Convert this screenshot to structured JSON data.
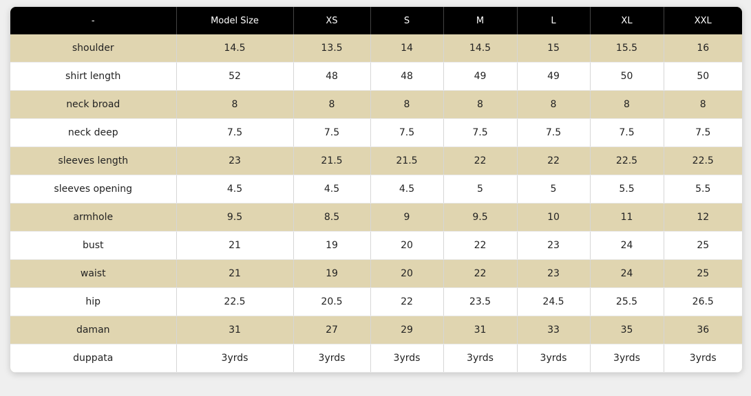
{
  "table": {
    "header": [
      "-",
      "Model Size",
      "XS",
      "S",
      "M",
      "L",
      "XL",
      "XXL"
    ],
    "rows": [
      [
        "shoulder",
        "14.5",
        "13.5",
        "14",
        "14.5",
        "15",
        "15.5",
        "16"
      ],
      [
        "shirt length",
        "52",
        "48",
        "48",
        "49",
        "49",
        "50",
        "50"
      ],
      [
        "neck broad",
        "8",
        "8",
        "8",
        "8",
        "8",
        "8",
        "8"
      ],
      [
        "neck deep",
        "7.5",
        "7.5",
        "7.5",
        "7.5",
        "7.5",
        "7.5",
        "7.5"
      ],
      [
        "sleeves length",
        "23",
        "21.5",
        "21.5",
        "22",
        "22",
        "22.5",
        "22.5"
      ],
      [
        "sleeves opening",
        "4.5",
        "4.5",
        "4.5",
        "5",
        "5",
        "5.5",
        "5.5"
      ],
      [
        "armhole",
        "9.5",
        "8.5",
        "9",
        "9.5",
        "10",
        "11",
        "12"
      ],
      [
        "bust",
        "21",
        "19",
        "20",
        "22",
        "23",
        "24",
        "25"
      ],
      [
        "waist",
        "21",
        "19",
        "20",
        "22",
        "23",
        "24",
        "25"
      ],
      [
        "hip",
        "22.5",
        "20.5",
        "22",
        "23.5",
        "24.5",
        "25.5",
        "26.5"
      ],
      [
        "daman",
        "31",
        "27",
        "29",
        "31",
        "33",
        "35",
        "36"
      ],
      [
        "duppata",
        "3yrds",
        "3yrds",
        "3yrds",
        "3yrds",
        "3yrds",
        "3yrds",
        "3yrds"
      ]
    ]
  }
}
